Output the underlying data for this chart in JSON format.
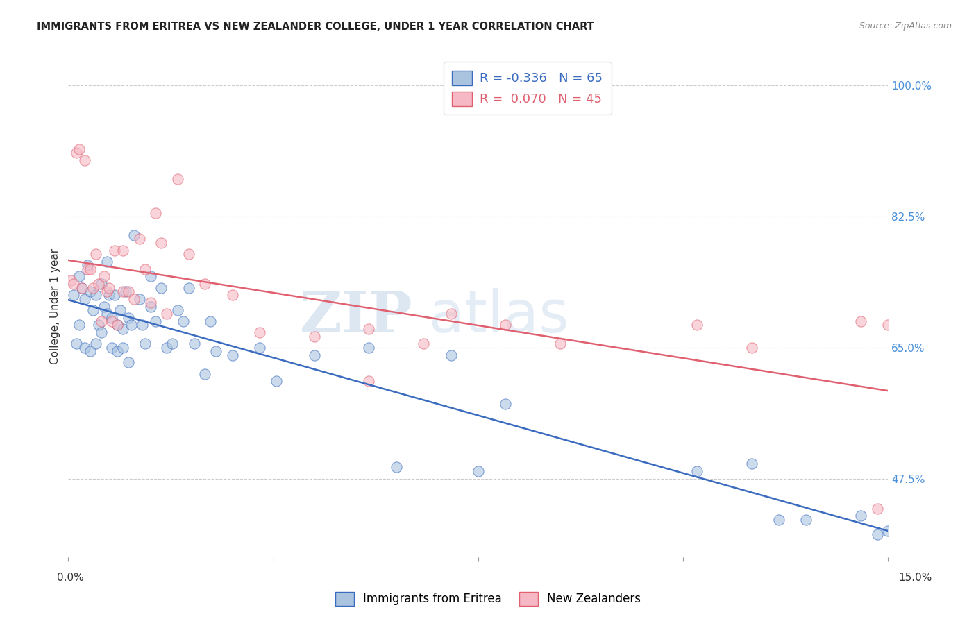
{
  "title": "IMMIGRANTS FROM ERITREA VS NEW ZEALANDER COLLEGE, UNDER 1 YEAR CORRELATION CHART",
  "source": "Source: ZipAtlas.com",
  "ylabel": "College, Under 1 year",
  "yticks": [
    100.0,
    82.5,
    65.0,
    47.5
  ],
  "ytick_labels": [
    "100.0%",
    "82.5%",
    "65.0%",
    "47.5%"
  ],
  "xlim": [
    0.0,
    15.0
  ],
  "ylim": [
    37.0,
    104.0
  ],
  "blue_R": "-0.336",
  "blue_N": "65",
  "pink_R": "0.070",
  "pink_N": "45",
  "blue_color": "#aac4e0",
  "pink_color": "#f5b8c4",
  "blue_line_color": "#3a6bbf",
  "pink_line_color": "#e06070",
  "grid_color": "#cccccc",
  "background_color": "#ffffff",
  "blue_scatter_x": [
    0.1,
    0.15,
    0.2,
    0.2,
    0.25,
    0.3,
    0.3,
    0.35,
    0.4,
    0.4,
    0.45,
    0.5,
    0.5,
    0.55,
    0.6,
    0.6,
    0.65,
    0.7,
    0.7,
    0.75,
    0.8,
    0.8,
    0.85,
    0.9,
    0.9,
    0.95,
    1.0,
    1.0,
    1.05,
    1.1,
    1.1,
    1.15,
    1.2,
    1.3,
    1.35,
    1.4,
    1.5,
    1.5,
    1.6,
    1.7,
    1.8,
    1.9,
    2.0,
    2.1,
    2.2,
    2.3,
    2.5,
    2.6,
    2.7,
    3.0,
    3.5,
    3.8,
    4.5,
    5.5,
    6.0,
    7.0,
    7.5,
    8.0,
    11.5,
    12.5,
    13.0,
    13.5,
    14.5,
    14.8,
    15.0
  ],
  "blue_scatter_y": [
    72.0,
    65.5,
    74.5,
    68.0,
    73.0,
    71.5,
    65.0,
    76.0,
    72.5,
    64.5,
    70.0,
    72.0,
    65.5,
    68.0,
    73.5,
    67.0,
    70.5,
    76.5,
    69.5,
    72.0,
    69.0,
    65.0,
    72.0,
    68.0,
    64.5,
    70.0,
    67.5,
    65.0,
    72.5,
    69.0,
    63.0,
    68.0,
    80.0,
    71.5,
    68.0,
    65.5,
    74.5,
    70.5,
    68.5,
    73.0,
    65.0,
    65.5,
    70.0,
    68.5,
    73.0,
    65.5,
    61.5,
    68.5,
    64.5,
    64.0,
    65.0,
    60.5,
    64.0,
    65.0,
    49.0,
    64.0,
    48.5,
    57.5,
    48.5,
    49.5,
    42.0,
    42.0,
    42.5,
    40.0,
    40.5
  ],
  "pink_scatter_x": [
    0.05,
    0.1,
    0.15,
    0.2,
    0.25,
    0.3,
    0.35,
    0.4,
    0.45,
    0.5,
    0.55,
    0.6,
    0.65,
    0.7,
    0.75,
    0.8,
    0.85,
    0.9,
    1.0,
    1.0,
    1.1,
    1.2,
    1.3,
    1.4,
    1.5,
    1.6,
    1.7,
    1.8,
    2.0,
    2.2,
    2.5,
    3.0,
    3.5,
    4.5,
    5.5,
    5.5,
    6.5,
    7.0,
    8.0,
    9.0,
    11.5,
    12.5,
    14.5,
    14.8,
    15.0
  ],
  "pink_scatter_y": [
    74.0,
    73.5,
    91.0,
    91.5,
    73.0,
    90.0,
    75.5,
    75.5,
    73.0,
    77.5,
    73.5,
    68.5,
    74.5,
    72.5,
    73.0,
    68.5,
    78.0,
    68.0,
    78.0,
    72.5,
    72.5,
    71.5,
    79.5,
    75.5,
    71.0,
    83.0,
    79.0,
    69.5,
    87.5,
    77.5,
    73.5,
    72.0,
    67.0,
    66.5,
    60.5,
    67.5,
    65.5,
    69.5,
    68.0,
    65.5,
    68.0,
    65.0,
    68.5,
    43.5,
    68.0
  ]
}
